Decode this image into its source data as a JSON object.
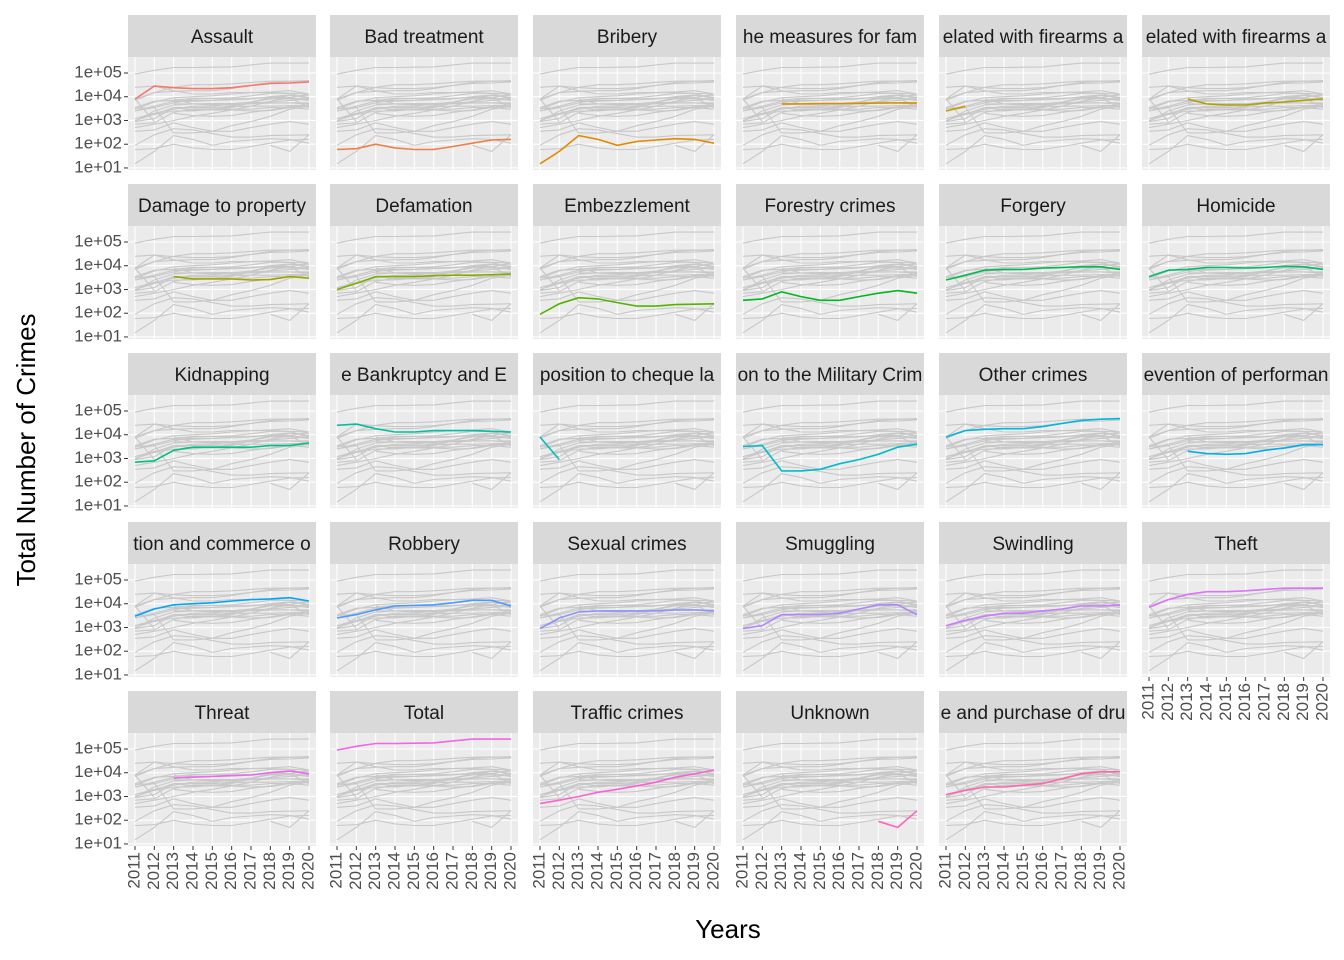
{
  "chart_data": {
    "type": "line",
    "facet": true,
    "log_y": true,
    "grid": true,
    "xlabel": "Years",
    "ylabel": "Total Number of Crimes",
    "background_line_color": "#C8C8C8",
    "x": [
      2011,
      2012,
      2013,
      2014,
      2015,
      2016,
      2017,
      2018,
      2019,
      2020
    ],
    "xticks": [
      2011,
      2012,
      2013,
      2014,
      2015,
      2016,
      2017,
      2018,
      2019,
      2020
    ],
    "ylim": [
      8.2,
      472000
    ],
    "yticks": [
      {
        "value": 10,
        "label": "1e+01"
      },
      {
        "value": 100,
        "label": "1e+02"
      },
      {
        "value": 1000,
        "label": "1e+03"
      },
      {
        "value": 10000,
        "label": "1e+04"
      },
      {
        "value": 100000,
        "label": "1e+05"
      }
    ],
    "series": [
      {
        "name": "Assault",
        "color": "#F8766D",
        "values": [
          8000,
          28000,
          24000,
          22000,
          22000,
          24000,
          30000,
          36000,
          38000,
          42000
        ]
      },
      {
        "name": "Bad treatment",
        "color": "#EF7F49",
        "values": [
          60,
          65,
          100,
          70,
          60,
          60,
          80,
          110,
          150,
          160
        ]
      },
      {
        "name": "Bribery",
        "color": "#E38900",
        "values": [
          15,
          50,
          230,
          160,
          90,
          130,
          150,
          170,
          160,
          110
        ]
      },
      {
        "name": "he measures for fam",
        "color": "#D59100",
        "values": [
          null,
          null,
          5000,
          5000,
          5200,
          5200,
          5300,
          5400,
          5500,
          5500
        ]
      },
      {
        "name": "elated with firearms a",
        "color": "#C49A00",
        "values": [
          2500,
          4000,
          null,
          null,
          null,
          null,
          null,
          null,
          null,
          null
        ]
      },
      {
        "name": "elated with firearms a",
        "color": "#B1A000",
        "values": [
          null,
          null,
          8000,
          5000,
          4500,
          4500,
          5500,
          6000,
          7000,
          8000
        ]
      },
      {
        "name": "Damage to property",
        "color": "#9AA800",
        "values": [
          null,
          null,
          3500,
          2800,
          2800,
          2800,
          2500,
          2600,
          3500,
          3000
        ]
      },
      {
        "name": "Defamation",
        "color": "#7EAE00",
        "values": [
          1000,
          1800,
          3500,
          3500,
          3500,
          3800,
          4000,
          4000,
          4200,
          4500
        ]
      },
      {
        "name": "Embezzlement",
        "color": "#53B400",
        "values": [
          90,
          250,
          450,
          400,
          280,
          200,
          200,
          230,
          240,
          250
        ]
      },
      {
        "name": "Forestry crimes",
        "color": "#00B81F",
        "values": [
          350,
          400,
          800,
          500,
          350,
          350,
          500,
          700,
          900,
          700
        ]
      },
      {
        "name": "Forgery",
        "color": "#00BB4E",
        "values": [
          2500,
          4000,
          6500,
          7000,
          7000,
          8000,
          8500,
          9000,
          9000,
          7000
        ]
      },
      {
        "name": "Homicide",
        "color": "#00BE6C",
        "values": [
          3500,
          6500,
          7000,
          8500,
          8500,
          8000,
          8500,
          9500,
          9000,
          7000
        ]
      },
      {
        "name": "Kidnapping",
        "color": "#00C087",
        "values": [
          700,
          800,
          2200,
          3000,
          3000,
          3000,
          3000,
          3500,
          3500,
          4500
        ]
      },
      {
        "name": "e  Bankruptcy  and E",
        "color": "#00C0A0",
        "values": [
          25000,
          28000,
          18000,
          13000,
          13000,
          15000,
          15000,
          15000,
          14000,
          13000
        ]
      },
      {
        "name": "position to cheque la",
        "color": "#00BFB7",
        "values": [
          8000,
          900,
          null,
          null,
          null,
          null,
          null,
          null,
          null,
          null
        ]
      },
      {
        "name": "on to the Military Crim",
        "color": "#00BCCB",
        "values": [
          3200,
          3500,
          300,
          300,
          350,
          600,
          900,
          1500,
          3000,
          4000
        ]
      },
      {
        "name": "Other crimes",
        "color": "#00B7DD",
        "values": [
          8000,
          15000,
          17000,
          18000,
          18000,
          22000,
          30000,
          40000,
          45000,
          48000
        ]
      },
      {
        "name": "evention of performan",
        "color": "#00AFED",
        "values": [
          null,
          null,
          2000,
          1600,
          1500,
          1600,
          2200,
          2800,
          3800,
          3800
        ]
      },
      {
        "name": "tion and commerce o",
        "color": "#00A5FA",
        "values": [
          3000,
          6000,
          9000,
          10000,
          11000,
          13000,
          15000,
          16000,
          18000,
          13000
        ]
      },
      {
        "name": "Robbery",
        "color": "#4A9AFF",
        "values": [
          2500,
          3500,
          5500,
          8000,
          8500,
          9000,
          11000,
          14000,
          14000,
          8000
        ]
      },
      {
        "name": "Sexual crimes",
        "color": "#8B93FF",
        "values": [
          900,
          2500,
          4500,
          5000,
          5000,
          5000,
          5000,
          5500,
          5500,
          5000
        ]
      },
      {
        "name": "Smuggling",
        "color": "#AE87FF",
        "values": [
          900,
          1200,
          3500,
          3500,
          3500,
          4000,
          6000,
          9000,
          9000,
          3500
        ]
      },
      {
        "name": "Swindling",
        "color": "#C97CFF",
        "values": [
          1200,
          2000,
          3000,
          4000,
          4000,
          5000,
          6000,
          8000,
          8000,
          9000
        ]
      },
      {
        "name": "Theft",
        "color": "#DC71FA",
        "values": [
          7000,
          15000,
          25000,
          32000,
          32000,
          35000,
          40000,
          45000,
          45000,
          45000
        ]
      },
      {
        "name": "Threat",
        "color": "#EB69EE",
        "values": [
          null,
          null,
          6000,
          6500,
          7000,
          7500,
          8000,
          10000,
          12000,
          9000
        ]
      },
      {
        "name": "Total",
        "color": "#F564E3",
        "values": [
          90000,
          130000,
          170000,
          170000,
          175000,
          180000,
          220000,
          260000,
          260000,
          260000
        ]
      },
      {
        "name": "Traffic crimes",
        "color": "#FC61D3",
        "values": [
          500,
          700,
          1000,
          1500,
          2000,
          2800,
          4000,
          6500,
          9000,
          13000
        ]
      },
      {
        "name": "Unknown",
        "color": "#FF62BC",
        "values": [
          null,
          null,
          null,
          null,
          null,
          null,
          null,
          90,
          50,
          250
        ]
      },
      {
        "name": "e and purchase of dru",
        "color": "#FF66A8",
        "values": [
          1200,
          1800,
          2500,
          2500,
          3000,
          3500,
          5500,
          9000,
          11000,
          11000
        ]
      }
    ]
  }
}
